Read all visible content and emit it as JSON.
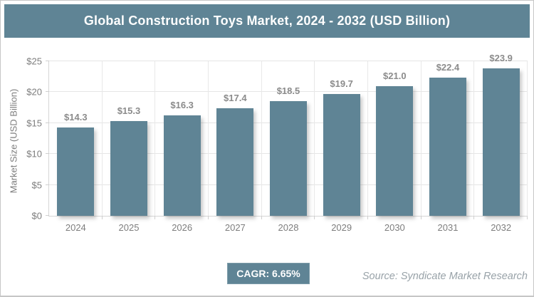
{
  "header": {
    "title": "Global Construction Toys Market, 2024 - 2032 (USD Billion)"
  },
  "chart_data": {
    "type": "bar",
    "title": "Global Construction Toys Market, 2024 - 2032 (USD Billion)",
    "categories": [
      "2024",
      "2025",
      "2026",
      "2027",
      "2028",
      "2029",
      "2030",
      "2031",
      "2032"
    ],
    "values": [
      14.3,
      15.3,
      16.3,
      17.4,
      18.5,
      19.7,
      21.0,
      22.4,
      23.9
    ],
    "value_labels": [
      "$14.3",
      "$15.3",
      "$16.3",
      "$17.4",
      "$18.5",
      "$19.7",
      "$21.0",
      "$22.4",
      "$23.9"
    ],
    "xlabel": "",
    "ylabel": "Market Size (USD Billion)",
    "ylim": [
      0,
      25
    ],
    "yticks": [
      {
        "value": 0,
        "label": "$0"
      },
      {
        "value": 5,
        "label": "$5"
      },
      {
        "value": 10,
        "label": "$10"
      },
      {
        "value": 15,
        "label": "$15"
      },
      {
        "value": 20,
        "label": "$20"
      },
      {
        "value": 25,
        "label": "$25"
      }
    ],
    "grid": "horizontal and vertical",
    "legend": "none",
    "bar_color": "#5f8495"
  },
  "footer": {
    "cagr_label": "CAGR: 6.65%",
    "source": "Source: Syndicate Market Research"
  },
  "colors": {
    "accent_teal": "#5f8495",
    "grid_line": "#e5e5e5",
    "axis_text": "#7d7d7d",
    "value_label_text": "#8b8b8b",
    "title_text": "#ffffff",
    "source_text": "#98a2a8",
    "background": "#ffffff"
  }
}
